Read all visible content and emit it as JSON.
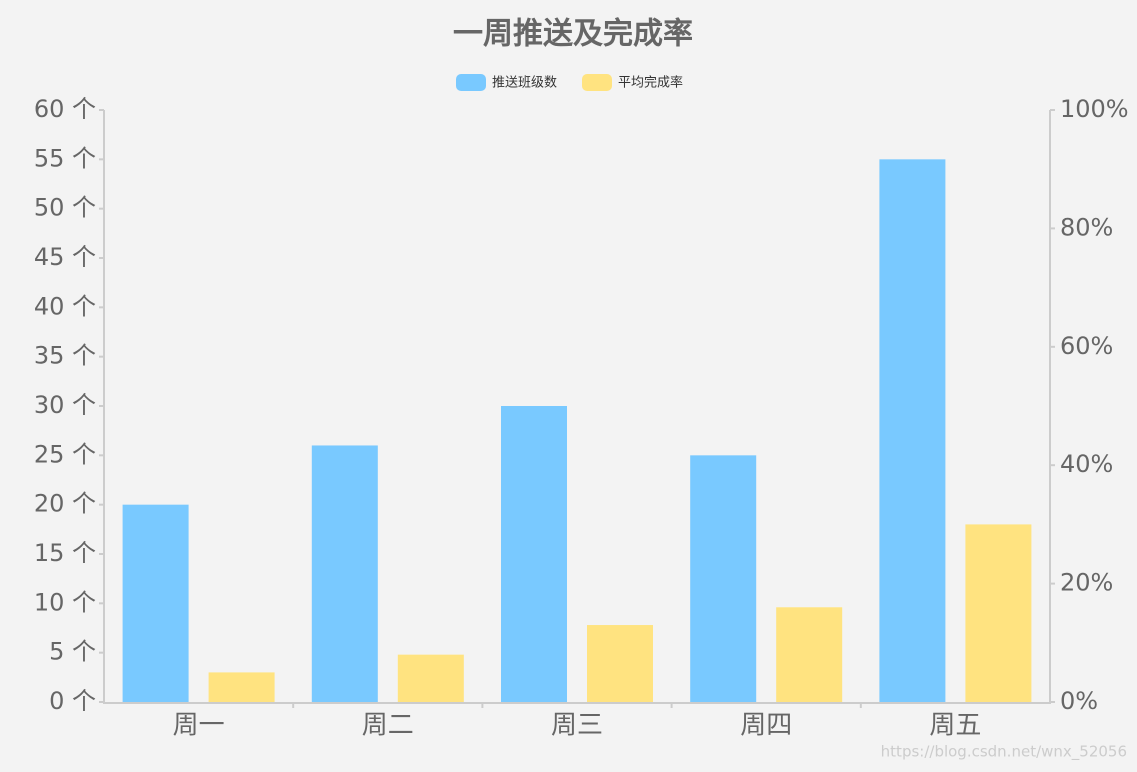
{
  "chart_data": {
    "type": "bar",
    "title": "一周推送及完成率",
    "categories": [
      "周一",
      "周二",
      "周三",
      "周四",
      "周五"
    ],
    "series": [
      {
        "name": "推送班级数",
        "color": "#79c9ff",
        "values": [
          20,
          26,
          30,
          25,
          55
        ]
      },
      {
        "name": "平均完成率",
        "color": "#ffe380",
        "axis": "y2",
        "values": [
          5,
          8,
          13,
          16,
          30
        ]
      }
    ],
    "ylim": [
      0,
      60
    ],
    "yticks": [
      {
        "value": 0,
        "label": "0 个"
      },
      {
        "value": 5,
        "label": "5 个"
      },
      {
        "value": 10,
        "label": "10 个"
      },
      {
        "value": 15,
        "label": "15 个"
      },
      {
        "value": 20,
        "label": "20 个"
      },
      {
        "value": 25,
        "label": "25 个"
      },
      {
        "value": 30,
        "label": "30 个"
      },
      {
        "value": 35,
        "label": "35 个"
      },
      {
        "value": 40,
        "label": "40 个"
      },
      {
        "value": 45,
        "label": "45 个"
      },
      {
        "value": 50,
        "label": "50 个"
      },
      {
        "value": 55,
        "label": "55 个"
      },
      {
        "value": 60,
        "label": "60 个"
      }
    ],
    "y2lim": [
      0,
      100
    ],
    "y2ticks": [
      {
        "value": 0,
        "label": "0%"
      },
      {
        "value": 20,
        "label": "20%"
      },
      {
        "value": 40,
        "label": "40%"
      },
      {
        "value": 60,
        "label": "60%"
      },
      {
        "value": 80,
        "label": "80%"
      },
      {
        "value": 100,
        "label": "100%"
      }
    ],
    "grid": false,
    "legend": "top",
    "annotation": "https://blog.csdn.net/wnx_52056"
  }
}
